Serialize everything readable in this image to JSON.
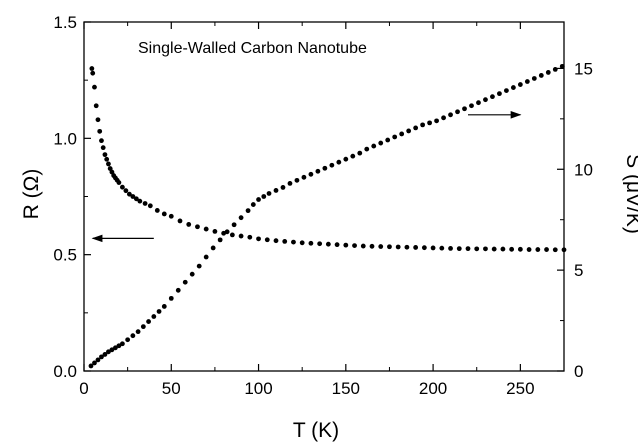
{
  "chart_data": {
    "type": "scatter",
    "title": "",
    "annotation": "Single-Walled Carbon Nanotube",
    "xlabel": "T (K)",
    "ylabel_left": "R (Ω)",
    "ylabel_right": "S (μV/K)",
    "xlim": [
      0,
      275
    ],
    "ylim_left": [
      0,
      1.5
    ],
    "ylim_right": [
      0,
      17.3
    ],
    "x_ticks": [
      0,
      50,
      100,
      150,
      200,
      250
    ],
    "y_ticks_left": [
      0.0,
      0.5,
      1.0,
      1.5
    ],
    "y_ticks_left_labels": [
      "0.0",
      "0.5",
      "1.0",
      "1.5"
    ],
    "y_ticks_right": [
      0,
      5,
      10,
      15
    ],
    "grid": false,
    "legend": "none",
    "arrows": [
      {
        "points_to": "left axis",
        "x_from": 40,
        "x_to": 5,
        "y": 0.57,
        "axis": "left"
      },
      {
        "points_to": "right axis",
        "x_from": 220,
        "x_to": 250,
        "y": 12.7,
        "axis": "right"
      }
    ],
    "series": [
      {
        "axis": "left",
        "marker": "circle",
        "color": "#000000",
        "x": [
          4.5,
          5,
          6,
          7,
          8,
          9,
          10,
          11,
          12,
          13,
          14,
          15,
          16,
          17,
          18,
          19,
          20,
          22,
          24,
          26,
          28,
          30,
          32,
          35,
          38,
          42,
          46,
          50,
          55,
          60,
          65,
          70,
          75,
          80,
          85,
          90,
          95,
          100,
          105,
          110,
          115,
          120,
          125,
          130,
          135,
          140,
          145,
          150,
          155,
          160,
          165,
          170,
          175,
          180,
          185,
          190,
          195,
          200,
          205,
          210,
          215,
          220,
          225,
          230,
          235,
          240,
          245,
          250,
          255,
          260,
          265,
          270,
          275
        ],
        "y": [
          1.3,
          1.28,
          1.22,
          1.14,
          1.08,
          1.03,
          0.99,
          0.96,
          0.93,
          0.91,
          0.89,
          0.87,
          0.855,
          0.84,
          0.83,
          0.82,
          0.81,
          0.79,
          0.775,
          0.76,
          0.75,
          0.74,
          0.73,
          0.72,
          0.71,
          0.69,
          0.675,
          0.665,
          0.645,
          0.63,
          0.62,
          0.61,
          0.6,
          0.592,
          0.585,
          0.58,
          0.575,
          0.568,
          0.564,
          0.56,
          0.557,
          0.554,
          0.551,
          0.549,
          0.547,
          0.545,
          0.543,
          0.541,
          0.539,
          0.537,
          0.536,
          0.535,
          0.534,
          0.533,
          0.532,
          0.531,
          0.53,
          0.529,
          0.528,
          0.527,
          0.526,
          0.526,
          0.525,
          0.525,
          0.524,
          0.524,
          0.523,
          0.523,
          0.522,
          0.522,
          0.522,
          0.521,
          0.521
        ]
      },
      {
        "axis": "right",
        "marker": "circle",
        "color": "#000000",
        "x": [
          4,
          6,
          8,
          10,
          12,
          14,
          16,
          18,
          20,
          22,
          25,
          28,
          31,
          34,
          37,
          40,
          43,
          46,
          50,
          54,
          58,
          62,
          66,
          70,
          74,
          78,
          82,
          86,
          90,
          94,
          97,
          100,
          103,
          106,
          110,
          114,
          118,
          122,
          126,
          130,
          134,
          138,
          142,
          146,
          150,
          154,
          158,
          162,
          166,
          170,
          174,
          178,
          182,
          186,
          190,
          194,
          198,
          202,
          206,
          210,
          214,
          218,
          222,
          226,
          230,
          234,
          238,
          242,
          246,
          250,
          254,
          258,
          262,
          266,
          270,
          274
        ],
        "y": [
          0.25,
          0.4,
          0.55,
          0.7,
          0.82,
          0.95,
          1.05,
          1.15,
          1.25,
          1.35,
          1.55,
          1.75,
          1.95,
          2.2,
          2.45,
          2.7,
          2.95,
          3.2,
          3.6,
          4.0,
          4.4,
          4.8,
          5.2,
          5.65,
          6.1,
          6.5,
          6.9,
          7.25,
          7.6,
          7.95,
          8.25,
          8.5,
          8.65,
          8.8,
          8.95,
          9.1,
          9.3,
          9.45,
          9.6,
          9.75,
          9.9,
          10.05,
          10.2,
          10.35,
          10.5,
          10.65,
          10.8,
          11.0,
          11.15,
          11.3,
          11.45,
          11.6,
          11.75,
          11.9,
          12.05,
          12.2,
          12.3,
          12.4,
          12.55,
          12.7,
          12.85,
          13.0,
          13.15,
          13.3,
          13.45,
          13.6,
          13.75,
          13.9,
          14.05,
          14.2,
          14.35,
          14.5,
          14.65,
          14.8,
          14.95,
          15.1
        ]
      }
    ]
  }
}
